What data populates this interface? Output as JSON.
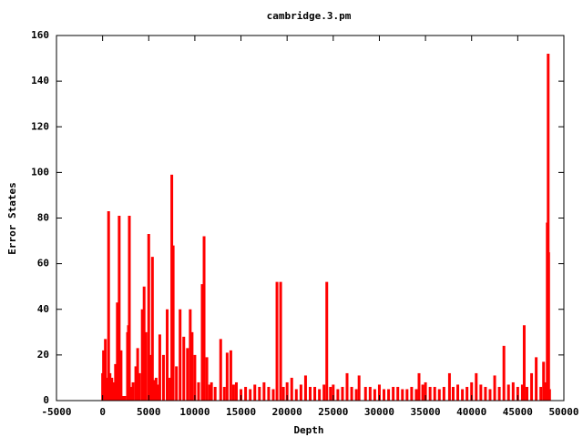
{
  "chart_data": {
    "type": "impulse",
    "title": "cambridge.3.pm",
    "x_label": "Depth",
    "y_label": "Error States",
    "color": "#ff0000",
    "xlim": [
      -5000,
      50000
    ],
    "xticks": [
      -5000,
      0,
      5000,
      10000,
      15000,
      20000,
      25000,
      30000,
      35000,
      40000,
      45000,
      50000
    ],
    "ylim": [
      0,
      160
    ],
    "yticks": [
      0,
      20,
      40,
      60,
      80,
      100,
      120,
      140,
      160
    ],
    "grid": false,
    "x": [
      0,
      100,
      300,
      500,
      650,
      800,
      1000,
      1200,
      1400,
      1600,
      1800,
      2000,
      2200,
      2400,
      2700,
      2800,
      2900,
      3100,
      3300,
      3600,
      3800,
      4000,
      4300,
      4500,
      4700,
      5000,
      5200,
      5400,
      5600,
      5800,
      6000,
      6200,
      6600,
      7000,
      7300,
      7500,
      7650,
      8000,
      8400,
      8800,
      9200,
      9500,
      9700,
      10000,
      10400,
      10800,
      11000,
      11300,
      11600,
      11800,
      12200,
      12800,
      13200,
      13500,
      13900,
      14200,
      14500,
      15000,
      15500,
      16000,
      16500,
      17000,
      17500,
      18000,
      18500,
      18900,
      19300,
      19600,
      20000,
      20500,
      21000,
      21500,
      22000,
      22500,
      23000,
      23500,
      24000,
      24300,
      24700,
      25000,
      25500,
      26000,
      26500,
      27000,
      27500,
      27800,
      28500,
      29000,
      29500,
      30000,
      30500,
      31000,
      31500,
      32000,
      32500,
      33000,
      33500,
      34000,
      34300,
      34700,
      35000,
      35500,
      36000,
      36500,
      37000,
      37600,
      38000,
      38500,
      39000,
      39500,
      40000,
      40500,
      41000,
      41500,
      42000,
      42500,
      43000,
      43500,
      44000,
      44500,
      45000,
      45500,
      45700,
      46000,
      46500,
      47000,
      47500,
      47800,
      48000,
      48200,
      48300,
      48350,
      48450
    ],
    "values": [
      12,
      22,
      27,
      10,
      83,
      12,
      10,
      8,
      16,
      43,
      81,
      22,
      2,
      2,
      30,
      33,
      81,
      6,
      8,
      15,
      23,
      12,
      40,
      50,
      30,
      73,
      20,
      63,
      9,
      10,
      7,
      29,
      20,
      40,
      10,
      99,
      68,
      15,
      40,
      28,
      23,
      40,
      30,
      20,
      8,
      51,
      72,
      19,
      7,
      8,
      6,
      27,
      6,
      21,
      22,
      7,
      8,
      5,
      6,
      5,
      7,
      6,
      8,
      6,
      5,
      52,
      52,
      6,
      8,
      10,
      5,
      7,
      11,
      6,
      6,
      5,
      7,
      52,
      6,
      7,
      5,
      6,
      12,
      6,
      5,
      11,
      6,
      6,
      5,
      7,
      5,
      5,
      6,
      6,
      5,
      5,
      6,
      5,
      12,
      7,
      8,
      6,
      6,
      5,
      6,
      12,
      6,
      7,
      5,
      6,
      8,
      12,
      7,
      6,
      5,
      11,
      6,
      24,
      7,
      8,
      6,
      7,
      33,
      6,
      12,
      19,
      6,
      17,
      8,
      78,
      152,
      65,
      5
    ]
  }
}
